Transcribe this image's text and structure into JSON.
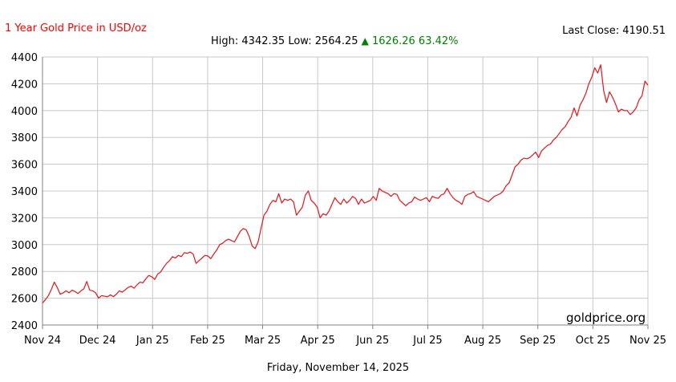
{
  "header": {
    "title": "1 Year Gold Price in USD/oz",
    "last_close_label": "Last Close:",
    "last_close_value": "4190.51",
    "high_label": "High:",
    "high_value": "4342.35",
    "low_label": "Low:",
    "low_value": "2564.25",
    "change_arrow": "▲",
    "change_value": "1626.26",
    "change_pct": "63.42%"
  },
  "watermark": "goldprice.org",
  "date_label": "Friday, November 14, 2025",
  "colors": {
    "line": "#e8141b",
    "title": "#ff0000",
    "change": "#008000",
    "grid": "#c8c8c8"
  },
  "chart_data": {
    "type": "line",
    "title": "1 Year Gold Price in USD/oz",
    "xlabel": "",
    "ylabel": "",
    "ylim": [
      2400,
      4400
    ],
    "yticks": [
      2400,
      2600,
      2800,
      3000,
      3200,
      3400,
      3600,
      3800,
      4000,
      4200,
      4400
    ],
    "xticks": [
      "Nov 24",
      "Dec 24",
      "Jan 25",
      "Feb 25",
      "Mar 25",
      "Apr 25",
      "Jun 25",
      "Jul 25",
      "Aug 25",
      "Sep 25",
      "Oct 25",
      "Nov 25"
    ],
    "grid": true,
    "series": [
      {
        "values": [
          2564,
          2590,
          2620,
          2665,
          2720,
          2680,
          2630,
          2640,
          2655,
          2640,
          2660,
          2650,
          2635,
          2655,
          2670,
          2725,
          2660,
          2655,
          2640,
          2600,
          2620,
          2615,
          2610,
          2625,
          2612,
          2630,
          2655,
          2645,
          2662,
          2680,
          2690,
          2675,
          2700,
          2720,
          2715,
          2745,
          2770,
          2760,
          2740,
          2780,
          2795,
          2830,
          2860,
          2880,
          2910,
          2900,
          2920,
          2910,
          2940,
          2935,
          2945,
          2930,
          2860,
          2880,
          2900,
          2920,
          2915,
          2895,
          2930,
          2960,
          3000,
          3010,
          3030,
          3040,
          3030,
          3020,
          3060,
          3100,
          3120,
          3110,
          3060,
          2990,
          2970,
          3020,
          3120,
          3220,
          3250,
          3300,
          3330,
          3320,
          3380,
          3310,
          3340,
          3330,
          3340,
          3320,
          3220,
          3250,
          3280,
          3370,
          3400,
          3330,
          3310,
          3280,
          3200,
          3230,
          3220,
          3250,
          3300,
          3350,
          3320,
          3300,
          3340,
          3310,
          3330,
          3360,
          3345,
          3300,
          3340,
          3310,
          3320,
          3330,
          3360,
          3330,
          3420,
          3400,
          3390,
          3380,
          3360,
          3380,
          3375,
          3330,
          3310,
          3290,
          3310,
          3320,
          3355,
          3340,
          3330,
          3340,
          3350,
          3320,
          3360,
          3350,
          3345,
          3370,
          3380,
          3420,
          3380,
          3350,
          3330,
          3320,
          3300,
          3360,
          3375,
          3380,
          3395,
          3360,
          3350,
          3340,
          3330,
          3320,
          3340,
          3360,
          3370,
          3380,
          3400,
          3440,
          3460,
          3520,
          3580,
          3600,
          3630,
          3645,
          3640,
          3650,
          3670,
          3690,
          3650,
          3700,
          3720,
          3740,
          3750,
          3780,
          3800,
          3830,
          3860,
          3880,
          3920,
          3950,
          4020,
          3960,
          4040,
          4080,
          4130,
          4200,
          4250,
          4320,
          4280,
          4342,
          4150,
          4060,
          4140,
          4100,
          4050,
          3990,
          4010,
          4000,
          4000,
          3970,
          3990,
          4020,
          4080,
          4110,
          4220,
          4190
        ]
      }
    ]
  }
}
